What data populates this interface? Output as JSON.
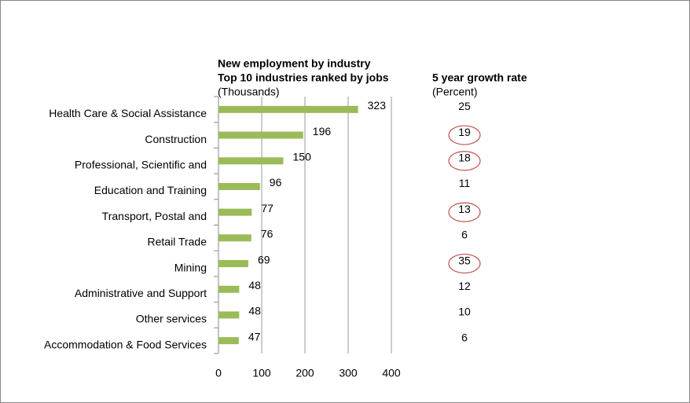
{
  "chart_data": {
    "type": "bar",
    "title": "New employment by industry",
    "subtitle": "Top 10 industries ranked by jobs",
    "unit_label": "(Thousands)",
    "categories": [
      "Health Care & Social Assistance",
      "Construction",
      "Professional, Scientific and",
      "Education and Training",
      "Transport, Postal and",
      "Retail Trade",
      "Mining",
      "Administrative and Support",
      "Other services",
      "Accommodation & Food Services"
    ],
    "values": [
      323,
      196,
      150,
      96,
      77,
      76,
      69,
      48,
      48,
      47
    ],
    "color": "#9bbb59",
    "xlim": [
      0,
      400
    ],
    "xticks": [
      0,
      100,
      200,
      300,
      400
    ],
    "grid": true,
    "growth_rate": {
      "title": "5 year growth rate",
      "unit_label": "(Percent)",
      "values": [
        25,
        19,
        18,
        11,
        13,
        6,
        35,
        12,
        10,
        6
      ],
      "highlight": [
        false,
        true,
        true,
        false,
        true,
        false,
        true,
        false,
        false,
        false
      ],
      "highlight_color": "#c0504d"
    }
  }
}
